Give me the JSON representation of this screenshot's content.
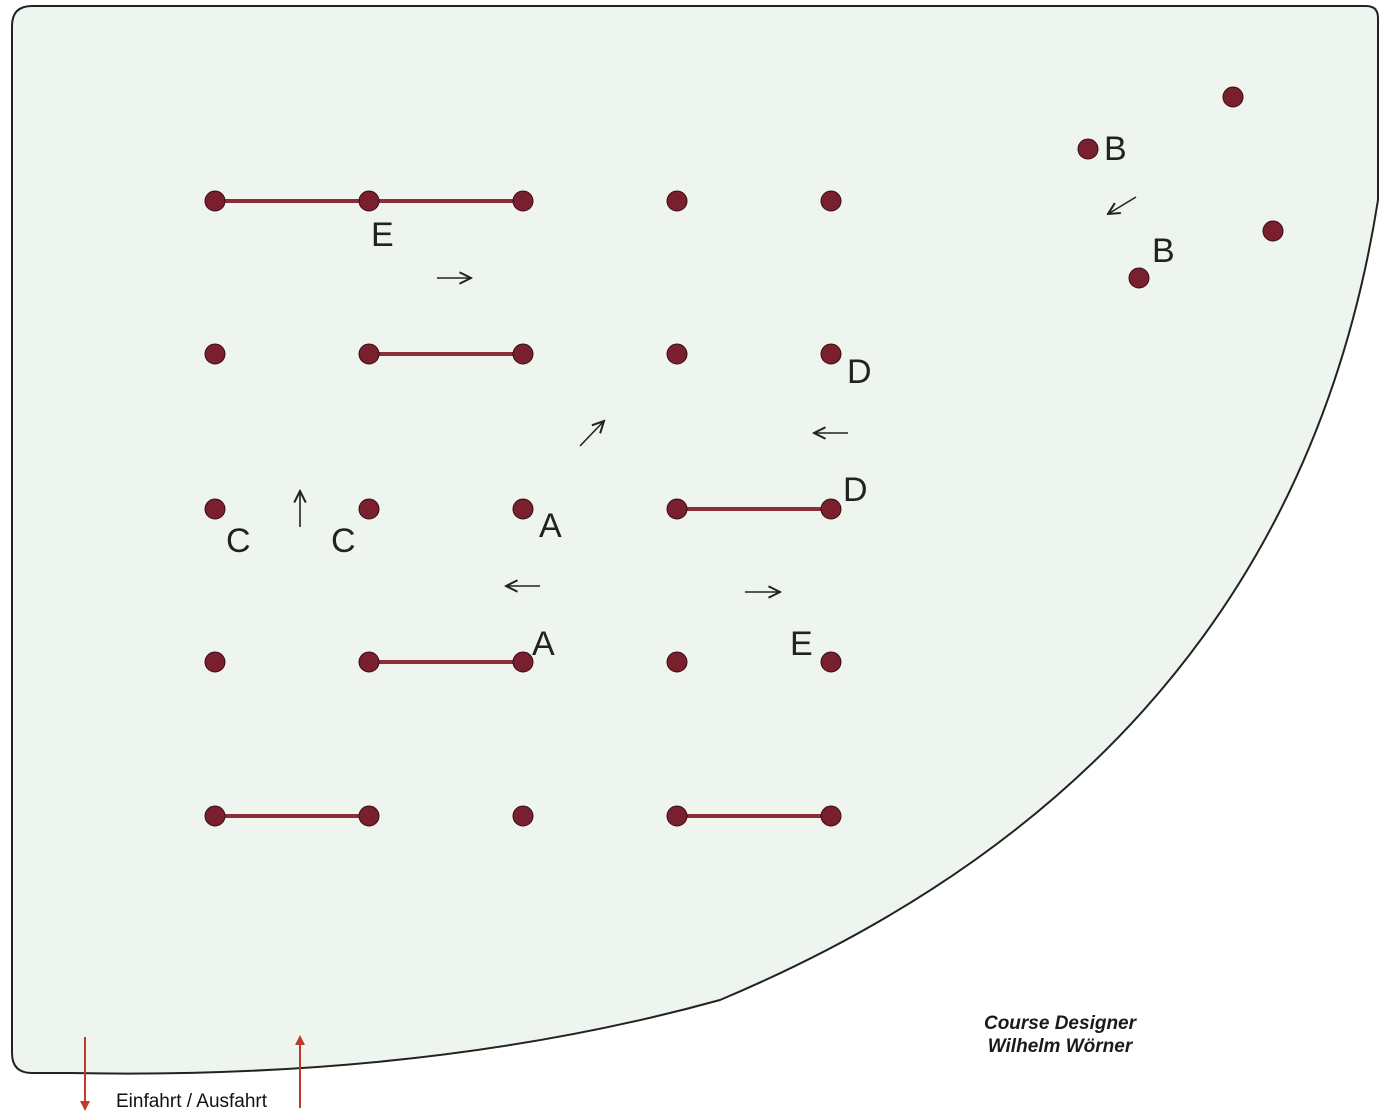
{
  "colors": {
    "arena_fill": "#eef5ef",
    "arena_border": "#222222",
    "fence_post": "#7a1f2e",
    "fence_rail": "#8a2f3a",
    "arrow": "#222222",
    "entry_arrow": "#c0392b"
  },
  "labels": {
    "e_top": "E",
    "d_upper": "D",
    "d_lower": "D",
    "c_left": "C",
    "c_right": "C",
    "a_upper": "A",
    "a_lower": "A",
    "e_mid": "E",
    "b_upper": "B",
    "b_lower": "B"
  },
  "designer": {
    "line1": "Course Designer",
    "line2": "Wilhelm Wörner"
  },
  "entry": {
    "label": "Einfahrt / Ausfahrt"
  },
  "icons": {
    "arrow_right": "arrow-right-icon",
    "arrow_left": "arrow-left-icon",
    "arrow_up": "arrow-up-icon",
    "arrow_up_right": "arrow-up-right-icon",
    "arrow_down_left": "arrow-down-left-icon"
  }
}
